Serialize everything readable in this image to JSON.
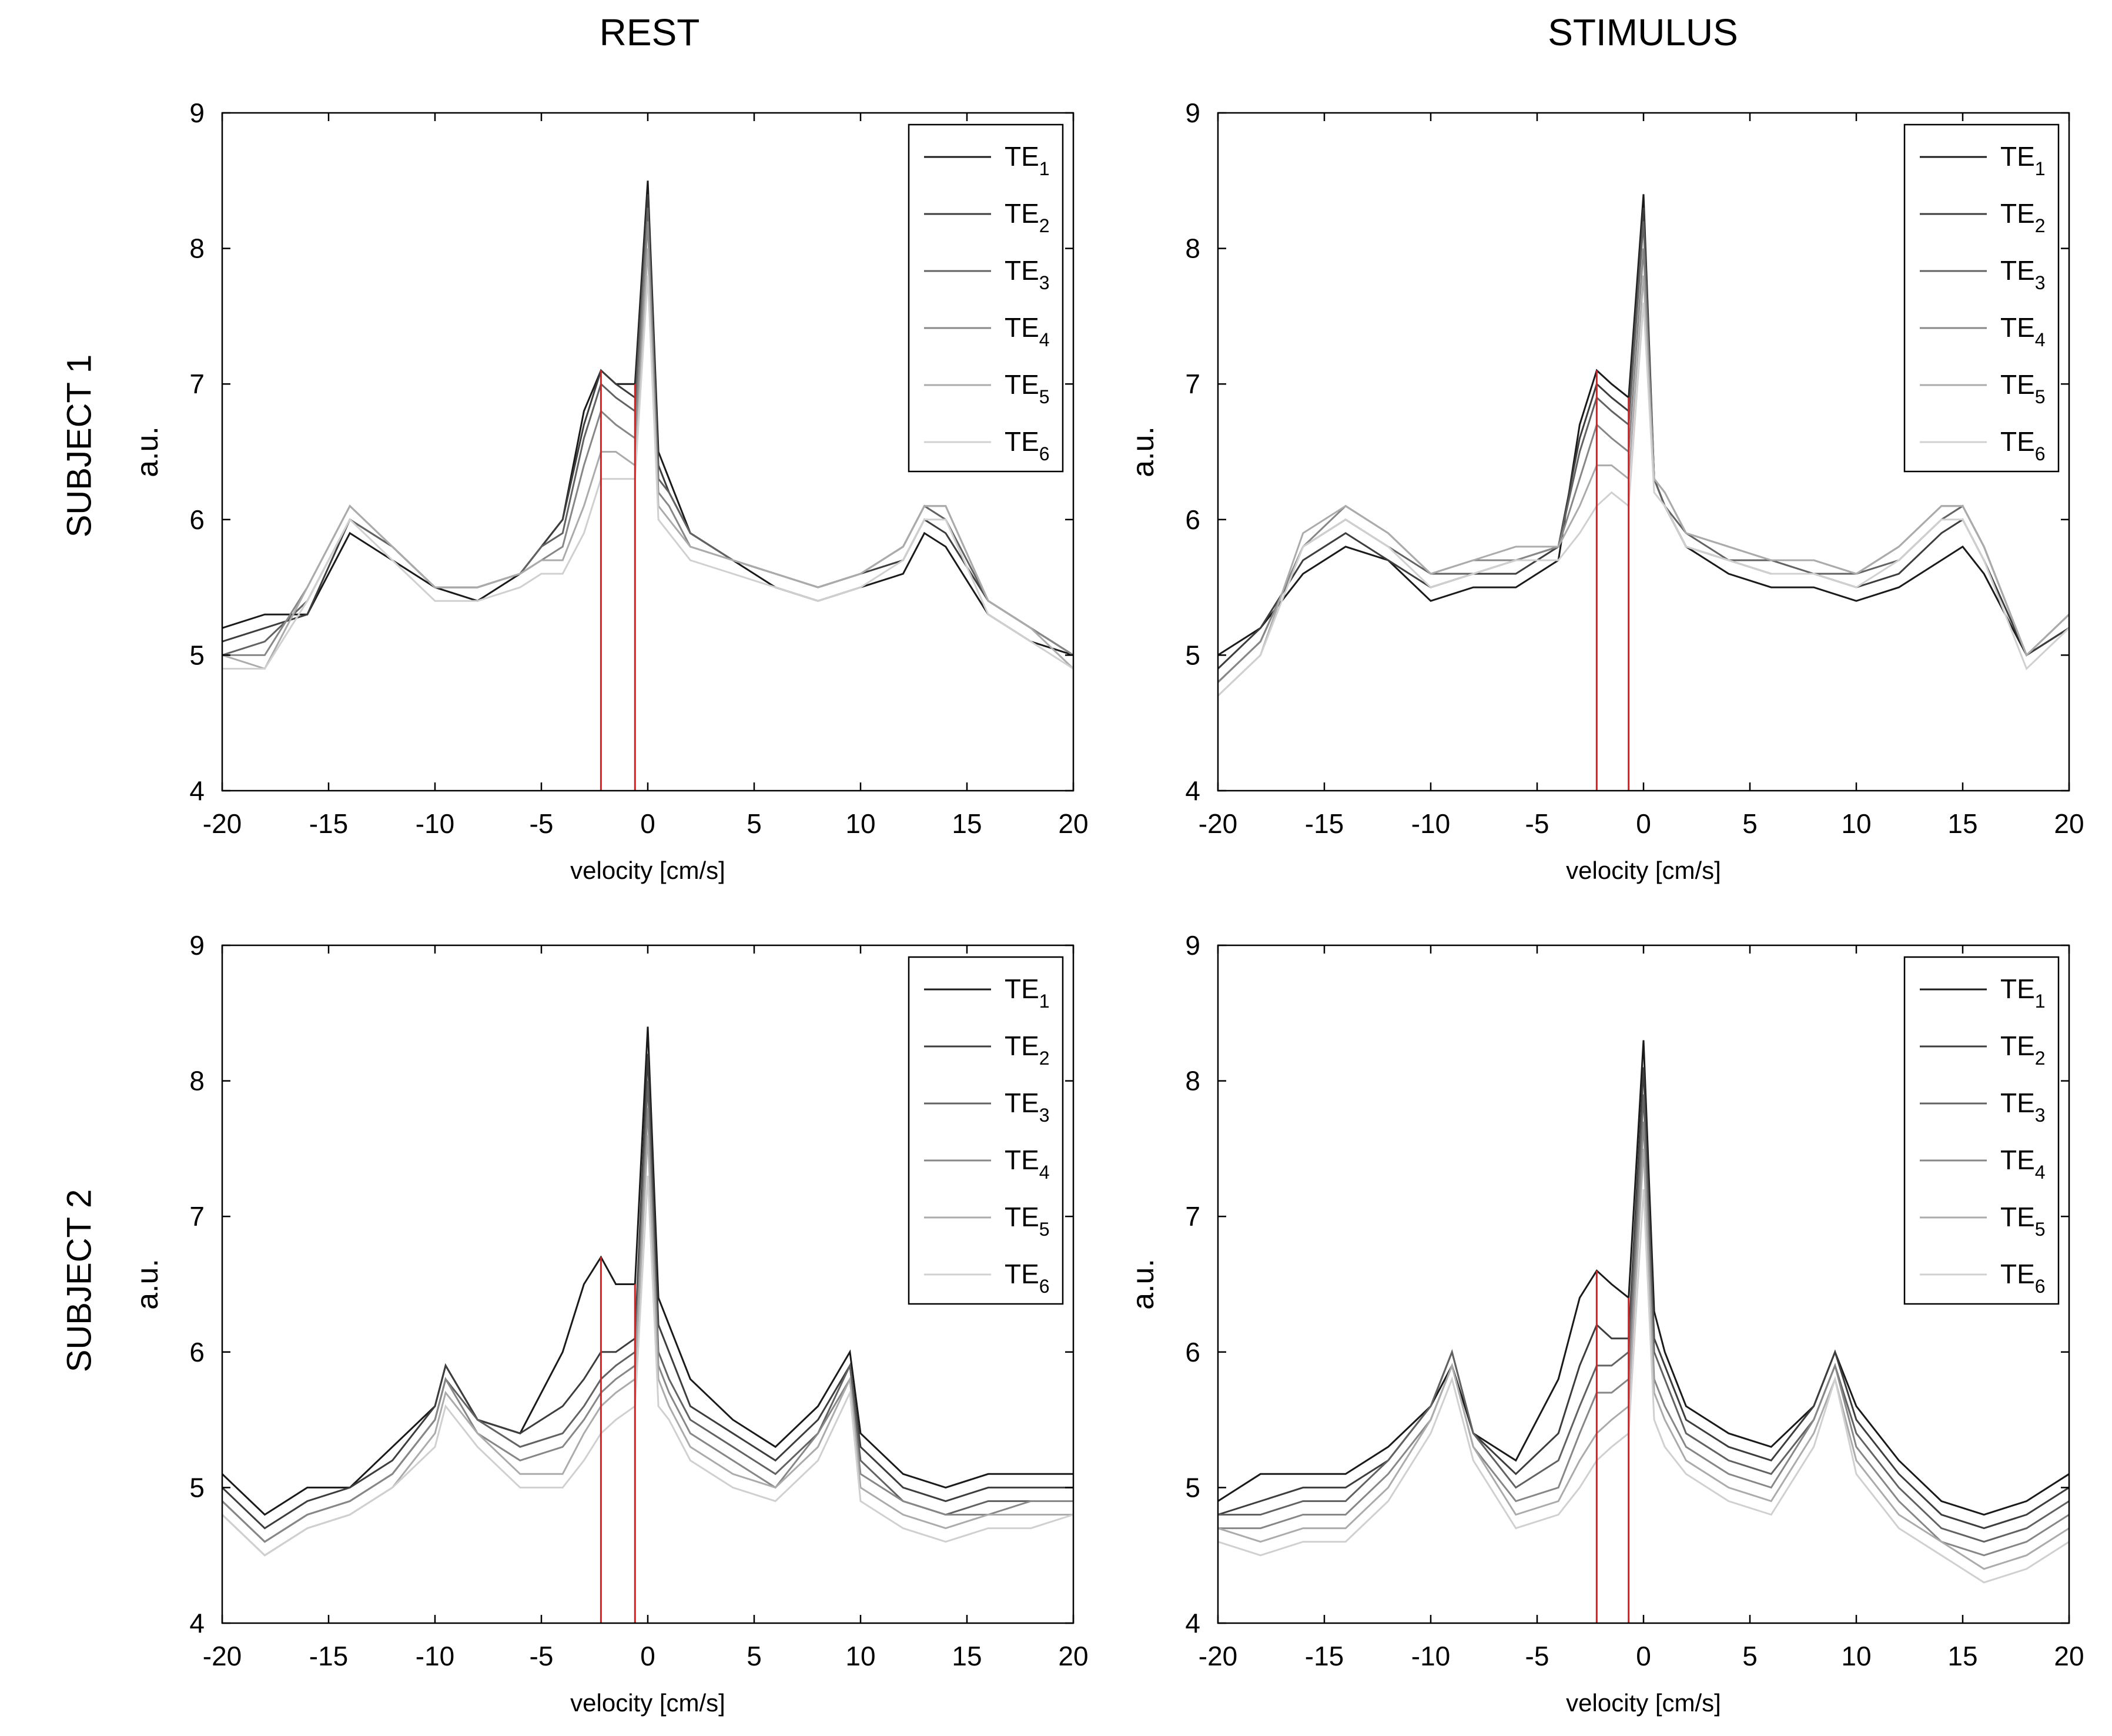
{
  "column_titles": [
    "REST",
    "STIMULUS"
  ],
  "row_titles": [
    "SUBJECT 1",
    "SUBJECT 2"
  ],
  "colors": {
    "axis": "#000000",
    "marker": "#e31a1c",
    "series": [
      "#1a1a1a",
      "#3d3d3d",
      "#626262",
      "#878787",
      "#ababab",
      "#d0d0d0"
    ]
  },
  "chart_data": [
    {
      "type": "line",
      "id": "s1-rest",
      "xlabel": "velocity [cm/s]",
      "ylabel": "a.u.",
      "xlim": [
        -20,
        20
      ],
      "ylim": [
        4,
        9
      ],
      "xticks": [
        "-20",
        "-15",
        "-10",
        "-5",
        "0",
        "5",
        "10",
        "15",
        "20"
      ],
      "yticks": [
        "4",
        "5",
        "6",
        "7",
        "8",
        "9"
      ],
      "legend": {
        "placement": "top-right",
        "entries": [
          [
            "TE",
            "1"
          ],
          [
            "TE",
            "2"
          ],
          [
            "TE",
            "3"
          ],
          [
            "TE",
            "4"
          ],
          [
            "TE",
            "5"
          ],
          [
            "TE",
            "6"
          ]
        ]
      },
      "markers_x": [
        -2.2,
        -0.6
      ],
      "x": [
        -20,
        -18,
        -16,
        -14,
        -12,
        -10,
        -8,
        -6,
        -5,
        -4,
        -3,
        -2.2,
        -1.5,
        -0.6,
        0,
        0.5,
        1,
        2,
        4,
        6,
        8,
        10,
        12,
        13,
        14,
        16,
        18,
        20
      ],
      "series": [
        {
          "values": [
            5.2,
            5.3,
            5.3,
            5.9,
            5.7,
            5.5,
            5.4,
            5.6,
            5.8,
            6.0,
            6.8,
            7.1,
            7.0,
            7.0,
            8.5,
            6.5,
            6.3,
            5.9,
            5.7,
            5.5,
            5.4,
            5.5,
            5.6,
            5.9,
            5.8,
            5.3,
            5.1,
            5.0
          ]
        },
        {
          "values": [
            5.1,
            5.2,
            5.3,
            6.0,
            5.8,
            5.5,
            5.5,
            5.6,
            5.8,
            6.0,
            6.7,
            7.1,
            7.0,
            6.9,
            8.4,
            6.4,
            6.2,
            5.9,
            5.7,
            5.6,
            5.5,
            5.6,
            5.7,
            6.0,
            5.9,
            5.4,
            5.2,
            5.0
          ]
        },
        {
          "values": [
            5.0,
            5.1,
            5.4,
            6.0,
            5.8,
            5.5,
            5.5,
            5.6,
            5.8,
            5.9,
            6.6,
            7.0,
            6.9,
            6.8,
            8.3,
            6.3,
            6.2,
            5.9,
            5.7,
            5.6,
            5.5,
            5.6,
            5.8,
            6.1,
            6.0,
            5.4,
            5.2,
            5.0
          ]
        },
        {
          "values": [
            5.0,
            5.0,
            5.5,
            6.1,
            5.8,
            5.5,
            5.5,
            5.6,
            5.7,
            5.8,
            6.4,
            6.8,
            6.7,
            6.6,
            8.2,
            6.2,
            6.1,
            5.8,
            5.7,
            5.6,
            5.5,
            5.6,
            5.8,
            6.1,
            6.1,
            5.4,
            5.2,
            5.0
          ]
        },
        {
          "values": [
            5.0,
            4.9,
            5.5,
            6.1,
            5.8,
            5.5,
            5.5,
            5.6,
            5.7,
            5.7,
            6.1,
            6.5,
            6.5,
            6.4,
            8.0,
            6.1,
            6.0,
            5.8,
            5.7,
            5.6,
            5.5,
            5.6,
            5.8,
            6.1,
            6.1,
            5.4,
            5.2,
            4.9
          ]
        },
        {
          "values": [
            4.9,
            4.9,
            5.4,
            6.0,
            5.7,
            5.4,
            5.4,
            5.5,
            5.6,
            5.6,
            5.9,
            6.3,
            6.3,
            6.3,
            7.8,
            6.0,
            5.9,
            5.7,
            5.6,
            5.5,
            5.4,
            5.5,
            5.7,
            6.0,
            6.0,
            5.3,
            5.1,
            4.9
          ]
        }
      ]
    },
    {
      "type": "line",
      "id": "s1-stimulus",
      "xlabel": "velocity [cm/s]",
      "ylabel": "a.u.",
      "xlim": [
        -20,
        20
      ],
      "ylim": [
        4,
        9
      ],
      "xticks": [
        "-20",
        "-15",
        "-10",
        "-5",
        "0",
        "5",
        "10",
        "15",
        "20"
      ],
      "yticks": [
        "4",
        "5",
        "6",
        "7",
        "8",
        "9"
      ],
      "legend": {
        "placement": "top-right",
        "entries": [
          [
            "TE",
            "1"
          ],
          [
            "TE",
            "2"
          ],
          [
            "TE",
            "3"
          ],
          [
            "TE",
            "4"
          ],
          [
            "TE",
            "5"
          ],
          [
            "TE",
            "6"
          ]
        ]
      },
      "markers_x": [
        -2.2,
        -0.7
      ],
      "x": [
        -20,
        -18,
        -16,
        -14,
        -12,
        -10,
        -8,
        -6,
        -4,
        -3,
        -2.2,
        -1.5,
        -0.7,
        0,
        0.5,
        1,
        2,
        4,
        6,
        8,
        10,
        12,
        14,
        15,
        16,
        18,
        20
      ],
      "series": [
        {
          "values": [
            5.0,
            5.2,
            5.6,
            5.8,
            5.7,
            5.4,
            5.5,
            5.5,
            5.7,
            6.7,
            7.1,
            7.0,
            6.9,
            8.4,
            6.3,
            6.1,
            5.8,
            5.6,
            5.5,
            5.5,
            5.4,
            5.5,
            5.7,
            5.8,
            5.6,
            5.0,
            5.2
          ]
        },
        {
          "values": [
            4.9,
            5.2,
            5.7,
            5.9,
            5.7,
            5.5,
            5.6,
            5.6,
            5.8,
            6.6,
            7.0,
            6.9,
            6.8,
            8.3,
            6.3,
            6.1,
            5.8,
            5.7,
            5.6,
            5.6,
            5.5,
            5.6,
            5.9,
            6.0,
            5.7,
            5.0,
            5.2
          ]
        },
        {
          "values": [
            4.8,
            5.1,
            5.8,
            6.0,
            5.8,
            5.6,
            5.6,
            5.7,
            5.8,
            6.5,
            6.9,
            6.8,
            6.7,
            8.2,
            6.3,
            6.1,
            5.9,
            5.7,
            5.7,
            5.6,
            5.6,
            5.7,
            6.0,
            6.1,
            5.8,
            5.0,
            5.3
          ]
        },
        {
          "values": [
            4.8,
            5.1,
            5.8,
            6.1,
            5.9,
            5.6,
            5.7,
            5.7,
            5.8,
            6.3,
            6.7,
            6.6,
            6.5,
            8.0,
            6.3,
            6.2,
            5.9,
            5.8,
            5.7,
            5.7,
            5.6,
            5.8,
            6.1,
            6.1,
            5.8,
            5.0,
            5.3
          ]
        },
        {
          "values": [
            4.7,
            5.0,
            5.9,
            6.1,
            5.9,
            5.6,
            5.7,
            5.8,
            5.8,
            6.1,
            6.4,
            6.4,
            6.3,
            7.8,
            6.3,
            6.2,
            5.9,
            5.8,
            5.7,
            5.7,
            5.6,
            5.8,
            6.1,
            6.1,
            5.8,
            5.0,
            5.3
          ]
        },
        {
          "values": [
            4.7,
            5.0,
            5.8,
            6.0,
            5.8,
            5.5,
            5.6,
            5.7,
            5.7,
            5.9,
            6.1,
            6.2,
            6.1,
            7.6,
            6.2,
            6.1,
            5.8,
            5.7,
            5.6,
            5.6,
            5.5,
            5.7,
            6.0,
            6.0,
            5.7,
            4.9,
            5.2
          ]
        }
      ]
    },
    {
      "type": "line",
      "id": "s2-rest",
      "xlabel": "velocity [cm/s]",
      "ylabel": "a.u.",
      "xlim": [
        -20,
        20
      ],
      "ylim": [
        4,
        9
      ],
      "xticks": [
        "-20",
        "-15",
        "-10",
        "-5",
        "0",
        "5",
        "10",
        "15",
        "20"
      ],
      "yticks": [
        "4",
        "5",
        "6",
        "7",
        "8",
        "9"
      ],
      "legend": {
        "placement": "top-right",
        "entries": [
          [
            "TE",
            "1"
          ],
          [
            "TE",
            "2"
          ],
          [
            "TE",
            "3"
          ],
          [
            "TE",
            "4"
          ],
          [
            "TE",
            "5"
          ],
          [
            "TE",
            "6"
          ]
        ]
      },
      "markers_x": [
        -2.2,
        -0.6
      ],
      "x": [
        -20,
        -18,
        -16,
        -14,
        -12,
        -10,
        -9.5,
        -8,
        -6,
        -4,
        -3,
        -2.2,
        -1.5,
        -0.6,
        0,
        0.5,
        1,
        2,
        4,
        6,
        8,
        9.5,
        10,
        12,
        14,
        16,
        18,
        20
      ],
      "series": [
        {
          "values": [
            5.1,
            4.8,
            5.0,
            5.0,
            5.3,
            5.6,
            5.9,
            5.5,
            5.4,
            6.0,
            6.5,
            6.7,
            6.5,
            6.5,
            8.4,
            6.4,
            6.2,
            5.8,
            5.5,
            5.3,
            5.6,
            6.0,
            5.4,
            5.1,
            5.0,
            5.1,
            5.1,
            5.1
          ]
        },
        {
          "values": [
            5.0,
            4.7,
            4.9,
            5.0,
            5.2,
            5.6,
            5.9,
            5.5,
            5.4,
            5.6,
            5.8,
            6.0,
            6.0,
            6.1,
            8.2,
            6.2,
            6.0,
            5.6,
            5.4,
            5.2,
            5.5,
            5.9,
            5.3,
            5.0,
            4.9,
            5.0,
            5.0,
            5.0
          ]
        },
        {
          "values": [
            4.9,
            4.6,
            4.8,
            4.9,
            5.1,
            5.5,
            5.8,
            5.5,
            5.3,
            5.4,
            5.6,
            5.8,
            5.9,
            6.0,
            8.0,
            6.0,
            5.8,
            5.5,
            5.3,
            5.1,
            5.4,
            5.9,
            5.2,
            4.9,
            4.8,
            4.9,
            4.9,
            4.9
          ]
        },
        {
          "values": [
            4.9,
            4.6,
            4.8,
            4.9,
            5.1,
            5.5,
            5.8,
            5.4,
            5.2,
            5.3,
            5.5,
            5.7,
            5.8,
            5.9,
            7.8,
            5.9,
            5.7,
            5.4,
            5.2,
            5.0,
            5.4,
            5.8,
            5.1,
            4.9,
            4.8,
            4.8,
            4.9,
            4.9
          ]
        },
        {
          "values": [
            4.8,
            4.5,
            4.7,
            4.8,
            5.0,
            5.4,
            5.7,
            5.4,
            5.1,
            5.1,
            5.4,
            5.6,
            5.7,
            5.8,
            7.6,
            5.8,
            5.6,
            5.3,
            5.1,
            5.0,
            5.3,
            5.8,
            5.0,
            4.8,
            4.7,
            4.8,
            4.8,
            4.8
          ]
        },
        {
          "values": [
            4.8,
            4.5,
            4.7,
            4.8,
            5.0,
            5.3,
            5.6,
            5.3,
            5.0,
            5.0,
            5.2,
            5.4,
            5.5,
            5.6,
            7.3,
            5.6,
            5.5,
            5.2,
            5.0,
            4.9,
            5.2,
            5.7,
            4.9,
            4.7,
            4.6,
            4.7,
            4.7,
            4.8
          ]
        }
      ]
    },
    {
      "type": "line",
      "id": "s2-stimulus",
      "xlabel": "velocity [cm/s]",
      "ylabel": "a.u.",
      "xlim": [
        -20,
        20
      ],
      "ylim": [
        4,
        9
      ],
      "xticks": [
        "-20",
        "-15",
        "-10",
        "-5",
        "0",
        "5",
        "10",
        "15",
        "20"
      ],
      "yticks": [
        "4",
        "5",
        "6",
        "7",
        "8",
        "9"
      ],
      "legend": {
        "placement": "top-right",
        "entries": [
          [
            "TE",
            "1"
          ],
          [
            "TE",
            "2"
          ],
          [
            "TE",
            "3"
          ],
          [
            "TE",
            "4"
          ],
          [
            "TE",
            "5"
          ],
          [
            "TE",
            "6"
          ]
        ]
      },
      "markers_x": [
        -2.2,
        -0.7
      ],
      "x": [
        -20,
        -18,
        -16,
        -14,
        -12,
        -10,
        -9,
        -8,
        -6,
        -4,
        -3,
        -2.2,
        -1.5,
        -0.7,
        0,
        0.5,
        1,
        2,
        4,
        6,
        8,
        9,
        10,
        12,
        14,
        16,
        18,
        20
      ],
      "series": [
        {
          "values": [
            4.9,
            5.1,
            5.1,
            5.1,
            5.3,
            5.6,
            5.9,
            5.4,
            5.2,
            5.8,
            6.4,
            6.6,
            6.5,
            6.4,
            8.3,
            6.3,
            6.0,
            5.6,
            5.4,
            5.3,
            5.6,
            6.0,
            5.6,
            5.2,
            4.9,
            4.8,
            4.9,
            5.1
          ]
        },
        {
          "values": [
            4.8,
            4.9,
            5.0,
            5.0,
            5.2,
            5.6,
            6.0,
            5.4,
            5.1,
            5.4,
            5.9,
            6.2,
            6.1,
            6.1,
            8.1,
            6.1,
            5.9,
            5.5,
            5.3,
            5.2,
            5.6,
            6.0,
            5.5,
            5.1,
            4.8,
            4.7,
            4.8,
            5.0
          ]
        },
        {
          "values": [
            4.8,
            4.8,
            4.9,
            4.9,
            5.2,
            5.6,
            6.0,
            5.4,
            5.0,
            5.2,
            5.6,
            5.9,
            5.9,
            6.0,
            7.9,
            6.0,
            5.8,
            5.4,
            5.2,
            5.1,
            5.5,
            5.9,
            5.4,
            5.0,
            4.7,
            4.6,
            4.7,
            4.9
          ]
        },
        {
          "values": [
            4.7,
            4.7,
            4.8,
            4.8,
            5.1,
            5.5,
            5.9,
            5.3,
            4.9,
            5.0,
            5.4,
            5.7,
            5.7,
            5.8,
            7.7,
            5.8,
            5.6,
            5.3,
            5.1,
            5.0,
            5.5,
            5.9,
            5.3,
            4.9,
            4.6,
            4.5,
            4.6,
            4.8
          ]
        },
        {
          "values": [
            4.7,
            4.6,
            4.7,
            4.7,
            5.0,
            5.5,
            5.9,
            5.3,
            4.8,
            4.9,
            5.2,
            5.4,
            5.5,
            5.6,
            7.5,
            5.7,
            5.5,
            5.2,
            5.0,
            4.9,
            5.4,
            5.8,
            5.2,
            4.8,
            4.6,
            4.4,
            4.5,
            4.7
          ]
        },
        {
          "values": [
            4.6,
            4.5,
            4.6,
            4.6,
            4.9,
            5.4,
            5.8,
            5.2,
            4.7,
            4.8,
            5.0,
            5.2,
            5.3,
            5.4,
            7.2,
            5.5,
            5.3,
            5.1,
            4.9,
            4.8,
            5.3,
            5.8,
            5.1,
            4.7,
            4.5,
            4.3,
            4.4,
            4.6
          ]
        }
      ]
    }
  ]
}
